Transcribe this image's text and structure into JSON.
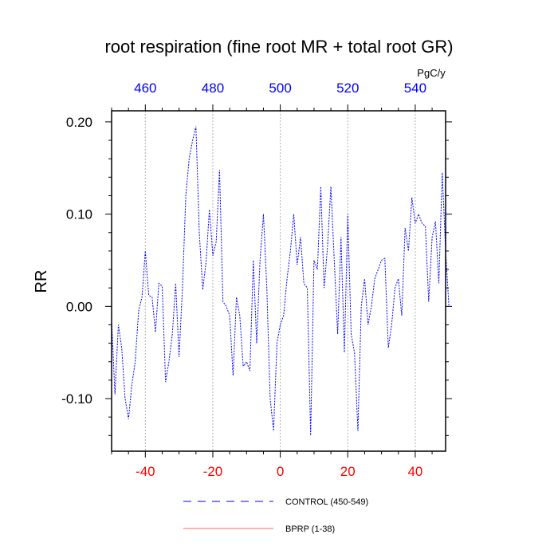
{
  "chart_data": {
    "type": "line",
    "title": "root respiration (fine root MR + total root GR)",
    "ylabel": "RR",
    "units_label": "PgC/y",
    "xlim": [
      -50,
      49
    ],
    "ylim": [
      -0.157,
      0.212
    ],
    "grid_x": true,
    "bottom_axis": {
      "color": "#ff0000",
      "ticks": [
        -40,
        -20,
        0,
        20,
        40
      ],
      "labels": [
        "-40",
        "-20",
        "0",
        "20",
        "40"
      ]
    },
    "top_axis": {
      "color": "#0000ff",
      "ticks": [
        -40,
        -20,
        0,
        20,
        40
      ],
      "labels": [
        "460",
        "480",
        "500",
        "520",
        "540"
      ]
    },
    "left_axis": {
      "ticks": [
        -0.1,
        0.0,
        0.1,
        0.2
      ],
      "labels": [
        "-0.10",
        "0.00",
        "0.10",
        "0.20"
      ]
    },
    "legend_position": "bottom",
    "series": [
      {
        "name": "CONTROL (450-549)",
        "color": "#0000ff",
        "style": "dashed",
        "x_start": -50,
        "values": [
          -0.015,
          -0.095,
          -0.02,
          -0.045,
          -0.1,
          -0.122,
          -0.085,
          -0.06,
          -0.005,
          0.01,
          0.06,
          0.012,
          0.01,
          -0.028,
          0.025,
          0.022,
          -0.082,
          -0.06,
          -0.03,
          0.025,
          -0.055,
          0.02,
          0.12,
          0.16,
          0.18,
          0.195,
          0.08,
          0.018,
          0.048,
          0.105,
          0.055,
          0.07,
          0.148,
          0.005,
          0.0,
          -0.01,
          -0.075,
          0.01,
          -0.01,
          -0.065,
          -0.06,
          -0.07,
          0.05,
          -0.04,
          0.05,
          0.1,
          0.02,
          -0.1,
          -0.135,
          -0.04,
          -0.02,
          -0.01,
          0.03,
          0.06,
          0.1,
          0.045,
          0.075,
          0.025,
          0.02,
          -0.14,
          0.05,
          0.04,
          0.13,
          0.02,
          0.065,
          0.13,
          0.05,
          -0.03,
          0.075,
          -0.05,
          0.1,
          -0.03,
          -0.05,
          -0.135,
          0.0,
          0.03,
          -0.02,
          0.0,
          0.03,
          0.04,
          0.05,
          0.052,
          -0.045,
          -0.02,
          0.02,
          0.03,
          -0.01,
          0.085,
          0.06,
          0.118,
          0.09,
          0.1,
          0.09,
          0.087,
          0.005,
          0.075,
          0.092,
          0.025,
          0.145,
          0.06,
          0.0
        ]
      },
      {
        "name": "BPRP (1-38)",
        "color": "#ff6666",
        "style": "solid",
        "values": []
      }
    ]
  }
}
